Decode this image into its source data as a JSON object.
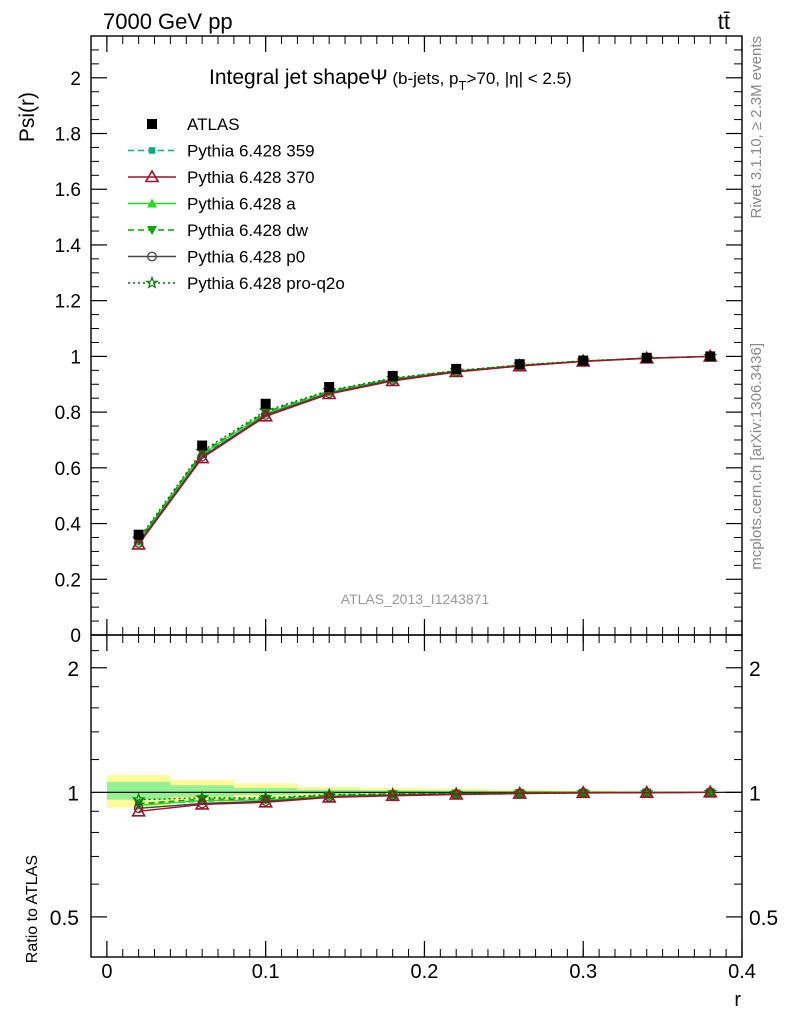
{
  "header": {
    "left": "7000 GeV pp",
    "right": "tt̄"
  },
  "plot_title": {
    "main": "Integral jet shapeΨ",
    "cut_prefix": " (b-jets, p",
    "cut_sub": "T",
    "cut_suffix": ">70, |η| < 2.5)"
  },
  "side_labels": {
    "rivet": "Rivet 3.1.10, ≥ 2.3M events",
    "mcplots": "mcplots.cern.ch [arXiv:1306.3436]"
  },
  "watermark": "ATLAS_2013_I1243871",
  "axis_labels": {
    "upper_y": "Psi(r)",
    "lower_y": "Ratio to ATLAS",
    "x": "r"
  },
  "colors": {
    "atlas": "#000000",
    "p359": "#00b07a",
    "p370": "#a0102a",
    "pa": "#22dd22",
    "pdw": "#00aa00",
    "pp0": "#444444",
    "pq2o": "#007700",
    "band_yellow": "#fffa96",
    "band_green": "#96f096"
  },
  "chart_data": [
    {
      "type": "line",
      "x": [
        0.02,
        0.06,
        0.1,
        0.14,
        0.18,
        0.22,
        0.26,
        0.3,
        0.34,
        0.38
      ],
      "xlim": [
        -0.01,
        0.4
      ],
      "ylim": [
        0,
        2.15
      ],
      "x_ticks": [
        "0",
        "0.1",
        "0.2",
        "0.3",
        "0.4"
      ],
      "y_ticks": [
        "0",
        "0.2",
        "0.4",
        "0.6",
        "0.8",
        "1",
        "1.2",
        "1.4",
        "1.6",
        "1.8",
        "2"
      ],
      "legend_position": "top-left",
      "series": [
        {
          "name": "ATLAS",
          "key": "atlas",
          "marker": "square",
          "values": [
            0.36,
            0.68,
            0.83,
            0.89,
            0.93,
            0.955,
            0.972,
            0.985,
            0.995,
            1.0
          ]
        },
        {
          "name": "Pythia 6.428 359",
          "key": "p359",
          "marker": "small-square",
          "line": "dashed",
          "values": [
            0.34,
            0.645,
            0.8,
            0.875,
            0.92,
            0.948,
            0.968,
            0.983,
            0.994,
            1.0
          ]
        },
        {
          "name": "Pythia 6.428 370",
          "key": "p370",
          "marker": "open-triangle",
          "line": "solid",
          "values": [
            0.325,
            0.635,
            0.785,
            0.865,
            0.912,
            0.944,
            0.965,
            0.982,
            0.993,
            1.0
          ]
        },
        {
          "name": "Pythia 6.428 a",
          "key": "pa",
          "marker": "triangle",
          "line": "solid",
          "values": [
            0.335,
            0.65,
            0.795,
            0.872,
            0.918,
            0.947,
            0.968,
            0.983,
            0.994,
            1.0
          ]
        },
        {
          "name": "Pythia 6.428 dw",
          "key": "pdw",
          "marker": "triangle-down",
          "line": "dashed",
          "values": [
            0.34,
            0.655,
            0.8,
            0.875,
            0.92,
            0.948,
            0.968,
            0.983,
            0.994,
            1.0
          ]
        },
        {
          "name": "Pythia 6.428 p0",
          "key": "pp0",
          "marker": "open-circle",
          "line": "solid",
          "values": [
            0.33,
            0.64,
            0.79,
            0.868,
            0.915,
            0.945,
            0.966,
            0.982,
            0.993,
            1.0
          ]
        },
        {
          "name": "Pythia 6.428 pro-q2o",
          "key": "pq2o",
          "marker": "open-star",
          "line": "dotted",
          "values": [
            0.345,
            0.66,
            0.805,
            0.878,
            0.922,
            0.949,
            0.969,
            0.984,
            0.994,
            1.0
          ]
        }
      ]
    },
    {
      "type": "line",
      "x": [
        0.02,
        0.06,
        0.1,
        0.14,
        0.18,
        0.22,
        0.26,
        0.3,
        0.34,
        0.38
      ],
      "xlim": [
        -0.01,
        0.4
      ],
      "ylim": [
        0.4,
        2.4
      ],
      "y_scale": "log",
      "y_ticks": [
        "0.5",
        "1",
        "2"
      ],
      "x_ticks": [
        "0",
        "0.1",
        "0.2",
        "0.3",
        "0.4"
      ],
      "bands": {
        "edges": [
          0.0,
          0.04,
          0.08,
          0.12,
          0.16,
          0.2,
          0.24,
          0.28,
          0.32,
          0.36,
          0.4
        ],
        "yellow": [
          [
            0.92,
            1.1
          ],
          [
            0.95,
            1.07
          ],
          [
            0.97,
            1.05
          ],
          [
            0.98,
            1.03
          ],
          [
            0.985,
            1.025
          ],
          [
            0.985,
            1.02
          ],
          [
            0.99,
            1.015
          ],
          [
            0.995,
            1.01
          ],
          [
            0.998,
            1.005
          ],
          [
            0.999,
            1.002
          ]
        ],
        "green": [
          [
            0.96,
            1.06
          ],
          [
            0.975,
            1.04
          ],
          [
            0.985,
            1.025
          ],
          [
            0.99,
            1.015
          ],
          [
            0.993,
            1.012
          ],
          [
            0.994,
            1.01
          ],
          [
            0.996,
            1.007
          ],
          [
            0.998,
            1.005
          ],
          [
            0.999,
            1.003
          ],
          [
            0.9995,
            1.001
          ]
        ]
      },
      "series": [
        {
          "name": "Pythia 6.428 359",
          "key": "p359",
          "values": [
            0.94,
            0.95,
            0.965,
            0.983,
            0.99,
            0.993,
            0.996,
            0.998,
            0.999,
            1.0
          ]
        },
        {
          "name": "Pythia 6.428 370",
          "key": "p370",
          "values": [
            0.9,
            0.935,
            0.946,
            0.972,
            0.981,
            0.988,
            0.993,
            0.997,
            0.998,
            1.0
          ]
        },
        {
          "name": "Pythia 6.428 a",
          "key": "pa",
          "values": [
            0.93,
            0.955,
            0.958,
            0.98,
            0.987,
            0.992,
            0.996,
            0.998,
            0.999,
            1.0
          ]
        },
        {
          "name": "Pythia 6.428 dw",
          "key": "pdw",
          "values": [
            0.94,
            0.963,
            0.964,
            0.983,
            0.99,
            0.993,
            0.996,
            0.998,
            0.999,
            1.0
          ]
        },
        {
          "name": "Pythia 6.428 p0",
          "key": "pp0",
          "values": [
            0.915,
            0.94,
            0.952,
            0.975,
            0.984,
            0.99,
            0.994,
            0.997,
            0.998,
            1.0
          ]
        },
        {
          "name": "Pythia 6.428 pro-q2o",
          "key": "pq2o",
          "values": [
            0.96,
            0.97,
            0.97,
            0.987,
            0.991,
            0.994,
            0.997,
            0.999,
            0.999,
            1.0
          ]
        }
      ]
    }
  ]
}
